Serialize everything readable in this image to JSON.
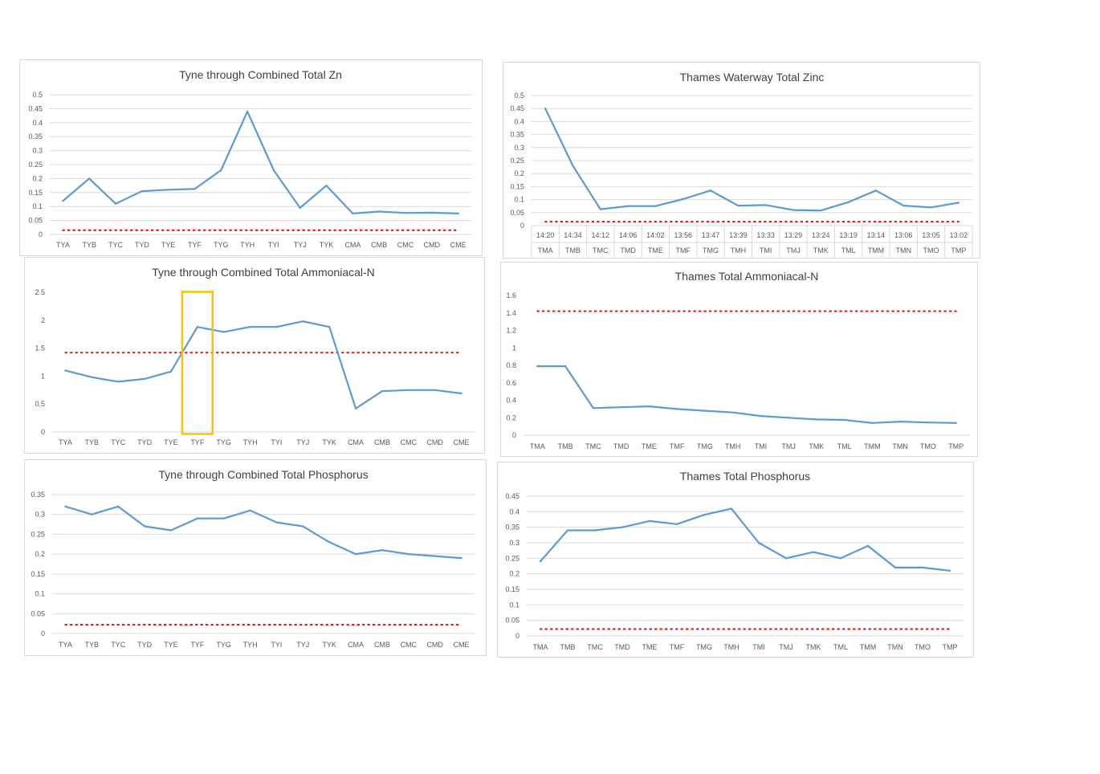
{
  "colors": {
    "series": "#5b9bd5",
    "threshold": "#e31a1c",
    "grid": "#d9d9d9",
    "highlight": "#ffc000"
  },
  "chart_data": [
    {
      "type": "line",
      "title": "Tyne through Combined Total Zn",
      "categories": [
        "TYA",
        "TYB",
        "TYC",
        "TYD",
        "TYE",
        "TYF",
        "TYG",
        "TYH",
        "TYI",
        "TYJ",
        "TYK",
        "CMA",
        "CMB",
        "CMC",
        "CMD",
        "CME"
      ],
      "y_ticks": [
        "0",
        "0.05",
        "0.1",
        "0.15",
        "0.2",
        "0.25",
        "0.3",
        "0.35",
        "0.4",
        "0.45",
        "0.5"
      ],
      "ylim": [
        0,
        0.5
      ],
      "values": [
        0.12,
        0.2,
        0.11,
        0.155,
        0.16,
        0.163,
        0.23,
        0.44,
        0.23,
        0.095,
        0.175,
        0.075,
        0.082,
        0.077,
        0.078,
        0.075
      ],
      "threshold": 0.015,
      "grid": true
    },
    {
      "type": "line",
      "title": "Thames Waterway Total Zinc",
      "categories": [
        "TMA",
        "TMB",
        "TMC",
        "TMD",
        "TME",
        "TMF",
        "TMG",
        "TMH",
        "TMI",
        "TMJ",
        "TMK",
        "TML",
        "TMM",
        "TMN",
        "TMO",
        "TMP"
      ],
      "times": [
        "14:20",
        "14:34",
        "14:12",
        "14:06",
        "14:02",
        "13:56",
        "13:47",
        "13:39",
        "13:33",
        "13:29",
        "13:24",
        "13:19",
        "13:14",
        "13:06",
        "13:05",
        "13:02"
      ],
      "y_ticks": [
        "0",
        "0.05",
        "0.1",
        "0.15",
        "0.2",
        "0.25",
        "0.3",
        "0.35",
        "0.4",
        "0.45",
        "0.5"
      ],
      "ylim": [
        0,
        0.5
      ],
      "values": [
        0.45,
        0.23,
        0.063,
        0.075,
        0.075,
        0.102,
        0.135,
        0.077,
        0.079,
        0.06,
        0.058,
        0.09,
        0.135,
        0.077,
        0.07,
        0.088
      ],
      "threshold": 0.015,
      "grid": true
    },
    {
      "type": "line",
      "title": "Tyne through Combined Total Ammoniacal-N",
      "categories": [
        "TYA",
        "TYB",
        "TYC",
        "TYD",
        "TYE",
        "TYF",
        "TYG",
        "TYH",
        "TYI",
        "TYJ",
        "TYK",
        "CMA",
        "CMB",
        "CMC",
        "CMD",
        "CME"
      ],
      "y_ticks": [
        "0",
        "0.5",
        "1",
        "1.5",
        "2",
        "2.5"
      ],
      "ylim": [
        0,
        2.5
      ],
      "values": [
        1.1,
        0.98,
        0.9,
        0.95,
        1.08,
        1.88,
        1.79,
        1.88,
        1.88,
        1.98,
        1.88,
        0.42,
        0.73,
        0.75,
        0.75,
        0.69
      ],
      "threshold": 1.42,
      "highlight_category": "TYF",
      "grid": false
    },
    {
      "type": "line",
      "title": "Thames Total Ammoniacal-N",
      "categories": [
        "TMA",
        "TMB",
        "TMC",
        "TMD",
        "TME",
        "TMF",
        "TMG",
        "TMH",
        "TMI",
        "TMJ",
        "TMK",
        "TML",
        "TMM",
        "TMN",
        "TMO",
        "TMP"
      ],
      "y_ticks": [
        "0",
        "0.2",
        "0.4",
        "0.6",
        "0.8",
        "1",
        "1.2",
        "1.4",
        "1.6"
      ],
      "ylim": [
        0,
        1.6
      ],
      "values": [
        0.79,
        0.79,
        0.31,
        0.32,
        0.33,
        0.3,
        0.28,
        0.26,
        0.22,
        0.2,
        0.18,
        0.175,
        0.14,
        0.155,
        0.145,
        0.14
      ],
      "threshold": 1.42,
      "grid": false
    },
    {
      "type": "line",
      "title": "Tyne through Combined Total Phosphorus",
      "categories": [
        "TYA",
        "TYB",
        "TYC",
        "TYD",
        "TYE",
        "TYF",
        "TYG",
        "TYH",
        "TYI",
        "TYJ",
        "TYK",
        "CMA",
        "CMB",
        "CMC",
        "CMD",
        "CME"
      ],
      "y_ticks": [
        "0",
        "0.05",
        "0.1",
        "0.15",
        "0.2",
        "0.25",
        "0.3",
        "0.35"
      ],
      "ylim": [
        0,
        0.35
      ],
      "values": [
        0.32,
        0.3,
        0.32,
        0.27,
        0.26,
        0.29,
        0.29,
        0.31,
        0.28,
        0.27,
        0.23,
        0.2,
        0.21,
        0.2,
        0.195,
        0.19
      ],
      "threshold": 0.022,
      "grid": true
    },
    {
      "type": "line",
      "title": "Thames Total Phosphorus",
      "categories": [
        "TMA",
        "TMB",
        "TMC",
        "TMD",
        "TME",
        "TMF",
        "TMG",
        "TMH",
        "TMI",
        "TMJ",
        "TMK",
        "TML",
        "TMM",
        "TMN",
        "TMO",
        "TMP"
      ],
      "y_ticks": [
        "0",
        "0.05",
        "0.1",
        "0.15",
        "0.2",
        "0.25",
        "0.3",
        "0.35",
        "0.4",
        "0.45"
      ],
      "ylim": [
        0,
        0.45
      ],
      "values": [
        0.24,
        0.34,
        0.34,
        0.35,
        0.37,
        0.36,
        0.39,
        0.41,
        0.3,
        0.25,
        0.27,
        0.25,
        0.29,
        0.22,
        0.22,
        0.21
      ],
      "threshold": 0.022,
      "grid": true
    }
  ]
}
